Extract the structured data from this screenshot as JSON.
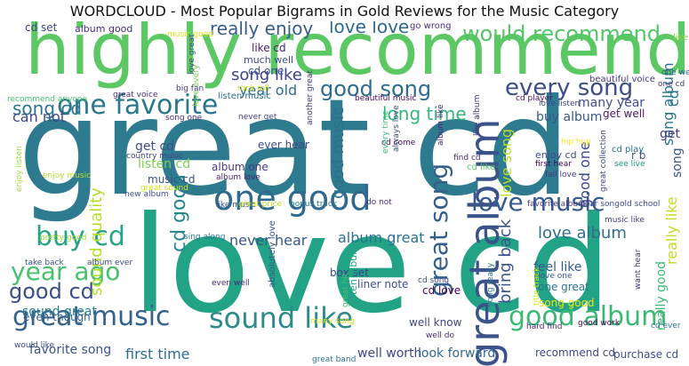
{
  "title": "WORDCLOUD - Most Popular Bigrams in Gold Reviews for the Music Category",
  "words": [
    {
      "text": "great cd",
      "color": "#2e7a8f"
    },
    {
      "text": "love cd",
      "color": "#22a386"
    },
    {
      "text": "highly recommend",
      "color": "#5cc863"
    },
    {
      "text": "great album",
      "color": "#3b528b"
    },
    {
      "text": "one good",
      "color": "#31688e"
    },
    {
      "text": "one favorite",
      "color": "#2a788e"
    },
    {
      "text": "great music",
      "color": "#35618c"
    },
    {
      "text": "sound like",
      "color": "#2d8b8c"
    },
    {
      "text": "good album",
      "color": "#3cb875"
    },
    {
      "text": "love music",
      "color": "#375a8c"
    },
    {
      "text": "buy cd",
      "color": "#27a487"
    },
    {
      "text": "year ago",
      "color": "#48c16e"
    },
    {
      "text": "every song",
      "color": "#3e4c8a"
    },
    {
      "text": "great song",
      "color": "#35608d"
    },
    {
      "text": "good song",
      "color": "#2f6b8e"
    },
    {
      "text": "would recommend",
      "color": "#54c568"
    },
    {
      "text": "good cd",
      "color": "#3c4f8a"
    },
    {
      "text": "really enjoy",
      "color": "#365d8d"
    },
    {
      "text": "love love",
      "color": "#30698e"
    },
    {
      "text": "song cd",
      "color": "#2b758e"
    },
    {
      "text": "cd good",
      "color": "#24868e"
    },
    {
      "text": "can not",
      "color": "#3f4889"
    },
    {
      "text": "long time",
      "color": "#35b779"
    },
    {
      "text": "love album",
      "color": "#2e6f8e"
    },
    {
      "text": "never hear",
      "color": "#38598c"
    },
    {
      "text": "album great",
      "color": "#2c718e"
    },
    {
      "text": "song like",
      "color": "#404387"
    },
    {
      "text": "year old",
      "color": "#2f6c8e"
    },
    {
      "text": "good music",
      "color": "#2d708e"
    },
    {
      "text": "bring back",
      "color": "#3a548c"
    },
    {
      "text": "sound great",
      "color": "#26818e"
    },
    {
      "text": "sound quality",
      "color": "#b5de2b"
    },
    {
      "text": "really like",
      "color": "#bddf26"
    },
    {
      "text": "song album",
      "color": "#2c728e"
    },
    {
      "text": "love song",
      "color": "#b8de29"
    },
    {
      "text": "first time",
      "color": "#2e6d8e"
    },
    {
      "text": "favorite song",
      "color": "#3a538b"
    },
    {
      "text": "good one",
      "color": "#3e4989"
    },
    {
      "text": "buy album",
      "color": "#38588c"
    },
    {
      "text": "many year",
      "color": "#3d4e8a"
    },
    {
      "text": "cd set",
      "color": "#404688"
    },
    {
      "text": "album good",
      "color": "#472d7b"
    },
    {
      "text": "music good",
      "color": "#d8e219"
    },
    {
      "text": "like cd",
      "color": "#481f70"
    },
    {
      "text": "much well",
      "color": "#3e4a89"
    },
    {
      "text": "cd one",
      "color": "#3a538b"
    },
    {
      "text": "go wrong",
      "color": "#46327e"
    },
    {
      "text": "like one",
      "color": "#8fd744"
    },
    {
      "text": "love every",
      "color": "#7ad151"
    },
    {
      "text": "big fan",
      "color": "#443a83"
    },
    {
      "text": "great voice",
      "color": "#472c7a"
    },
    {
      "text": "beautiful voice",
      "color": "#453781"
    },
    {
      "text": "one cd",
      "color": "#46337f"
    },
    {
      "text": "cd player",
      "color": "#471063"
    },
    {
      "text": "listen music",
      "color": "#2e6e8e"
    },
    {
      "text": "rock roll",
      "color": "#d2e21b"
    },
    {
      "text": "another great",
      "color": "#46337f"
    },
    {
      "text": "beautiful music",
      "color": "#450559"
    },
    {
      "text": "love listen",
      "color": "#3f4788"
    },
    {
      "text": "song one",
      "color": "#472a7a"
    },
    {
      "text": "never get",
      "color": "#424086"
    },
    {
      "text": "get cd",
      "color": "#3e4c8a"
    },
    {
      "text": "ever hear",
      "color": "#3e4989"
    },
    {
      "text": "get well",
      "color": "#481769"
    },
    {
      "text": "listen cd",
      "color": "#7ad151"
    },
    {
      "text": "country music",
      "color": "#404688"
    },
    {
      "text": "album one",
      "color": "#443b84"
    },
    {
      "text": "music cd",
      "color": "#3b518b"
    },
    {
      "text": "album love",
      "color": "#482374"
    },
    {
      "text": "cd come",
      "color": "#46085c"
    },
    {
      "text": "album like",
      "color": "#482576"
    },
    {
      "text": "find cd",
      "color": "#472d7b"
    },
    {
      "text": "cd like",
      "color": "#5cc863"
    },
    {
      "text": "enjoy cd",
      "color": "#3f4788"
    },
    {
      "text": "first hear",
      "color": "#450457"
    },
    {
      "text": "great collection",
      "color": "#3e4a89"
    },
    {
      "text": "fall love",
      "color": "#453882"
    },
    {
      "text": "see live",
      "color": "#1fa088"
    },
    {
      "text": "hip hop",
      "color": "#fde725"
    },
    {
      "text": "cd play",
      "color": "#2d708e"
    },
    {
      "text": "old school",
      "color": "#3f4889"
    },
    {
      "text": "enjoy music",
      "color": "#b4de2c"
    },
    {
      "text": "enjoy listen",
      "color": "#a5db36"
    },
    {
      "text": "new album",
      "color": "#3b528b"
    },
    {
      "text": "great sound",
      "color": "#d8e219"
    },
    {
      "text": "like music",
      "color": "#3b528b"
    },
    {
      "text": "great price",
      "color": "#c0df25"
    },
    {
      "text": "bonus track",
      "color": "#2a788e"
    },
    {
      "text": "do not",
      "color": "#472f7d"
    },
    {
      "text": "favorite album",
      "color": "#443983"
    },
    {
      "text": "hear song",
      "color": "#3b518b"
    },
    {
      "text": "music like",
      "color": "#424186"
    },
    {
      "text": "pretty good",
      "color": "#9bd93c"
    },
    {
      "text": "sing along",
      "color": "#2a788e"
    },
    {
      "text": "take back",
      "color": "#39558c"
    },
    {
      "text": "album ever",
      "color": "#3f4889"
    },
    {
      "text": "even well",
      "color": "#472d7b"
    },
    {
      "text": "box set",
      "color": "#414487"
    },
    {
      "text": "absolutely love",
      "color": "#38588c"
    },
    {
      "text": "great hit",
      "color": "#46c06f"
    },
    {
      "text": "listen album",
      "color": "#20a486"
    },
    {
      "text": "liner note",
      "color": "#3e4c8a"
    },
    {
      "text": "cd love",
      "color": "#440154"
    },
    {
      "text": "cd song",
      "color": "#3e4989"
    },
    {
      "text": "feel like",
      "color": "#365c8d"
    },
    {
      "text": "love one",
      "color": "#38588c"
    },
    {
      "text": "one great",
      "color": "#2c738e"
    },
    {
      "text": "song good",
      "color": "#e5e419"
    },
    {
      "text": "want hear",
      "color": "#46327e"
    },
    {
      "text": "really good",
      "color": "#3aba76"
    },
    {
      "text": "even though",
      "color": "#33638d"
    },
    {
      "text": "would like",
      "color": "#3d4d8a"
    },
    {
      "text": "many song",
      "color": "#e2e418"
    },
    {
      "text": "great band",
      "color": "#2c738e"
    },
    {
      "text": "well know",
      "color": "#404688"
    },
    {
      "text": "well worth",
      "color": "#3f4788"
    },
    {
      "text": "well do",
      "color": "#472a7a"
    },
    {
      "text": "look forward",
      "color": "#31688e"
    },
    {
      "text": "hard find",
      "color": "#482173"
    },
    {
      "text": "good work",
      "color": "#460b5e"
    },
    {
      "text": "recommend cd",
      "color": "#3f4788"
    },
    {
      "text": "purchase cd",
      "color": "#3d4e8a"
    },
    {
      "text": "cd ever",
      "color": "#2a788e"
    },
    {
      "text": "one well",
      "color": "#32648e"
    },
    {
      "text": "recommend anyone",
      "color": "#48c16e"
    },
    {
      "text": "song really",
      "color": "#2a788e"
    },
    {
      "text": "title track",
      "color": "#d2e21b"
    },
    {
      "text": "always love",
      "color": "#3c508b"
    },
    {
      "text": "every time",
      "color": "#3aba76"
    },
    {
      "text": "love great",
      "color": "#3e4989"
    },
    {
      "text": "like album",
      "color": "#453781"
    },
    {
      "text": "r b",
      "color": "#3b528b"
    },
    {
      "text": "get",
      "color": "#443983"
    },
    {
      "text": "cd",
      "color": "#2a788e"
    },
    {
      "text": "song",
      "color": "#3b528b"
    }
  ]
}
